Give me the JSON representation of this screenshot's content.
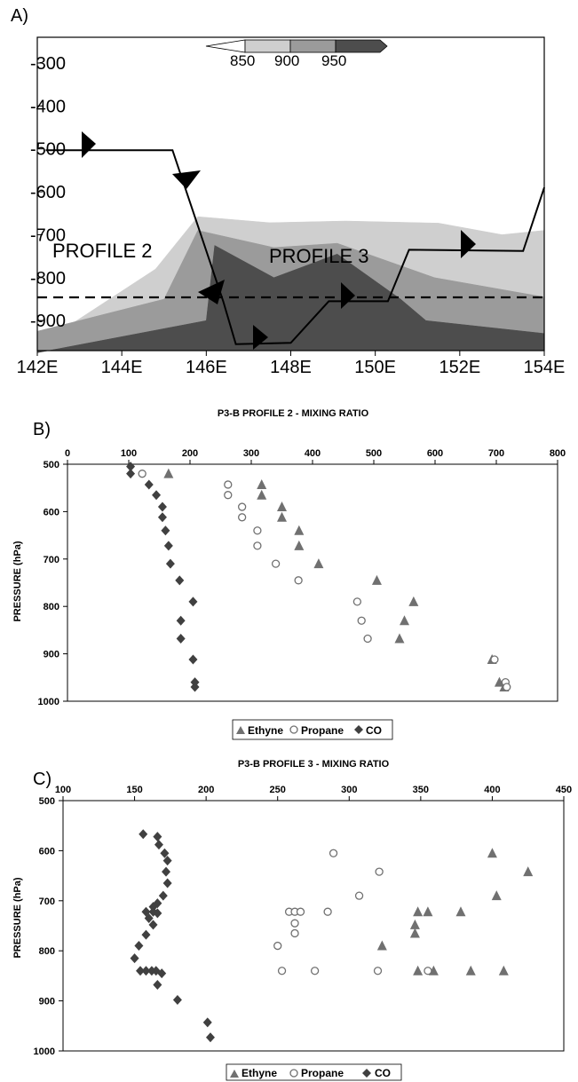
{
  "colors": {
    "level_850": "#cfcfcf",
    "level_900": "#9b9b9b",
    "level_950": "#4d4d4d",
    "marker": "#707070"
  },
  "chart_data": [
    {
      "panel": "A)",
      "type": "area",
      "x_ticks": [
        "142E",
        "144E",
        "146E",
        "148E",
        "150E",
        "152E",
        "154E"
      ],
      "y_ticks": [
        "300",
        "400",
        "500",
        "600",
        "700",
        "800",
        "900"
      ],
      "xlim": [
        142,
        154
      ],
      "ylim": [
        970,
        240
      ],
      "colorbar_labels": [
        "850",
        "900",
        "950"
      ],
      "profile_labels": [
        "PROFILE 2",
        "PROFILE 3"
      ],
      "reference_line_level": 855,
      "flight_track": [
        [
          142.2,
          503
        ],
        [
          145.2,
          503
        ],
        [
          146.4,
          855
        ],
        [
          146.7,
          955
        ],
        [
          148.0,
          952
        ],
        [
          148.9,
          855
        ],
        [
          150.3,
          855
        ],
        [
          150.8,
          735
        ],
        [
          153.5,
          738
        ],
        [
          154.0,
          590
        ]
      ],
      "contours": {
        "850": [
          [
            142,
            960
          ],
          [
            144.8,
            780
          ],
          [
            145.8,
            658
          ],
          [
            147.5,
            672
          ],
          [
            149.3,
            668
          ],
          [
            151.5,
            673
          ],
          [
            153.0,
            700
          ],
          [
            154,
            690
          ],
          [
            154,
            970
          ],
          [
            142,
            970
          ]
        ],
        "900": [
          [
            142,
            925
          ],
          [
            145.0,
            850
          ],
          [
            145.8,
            690
          ],
          [
            147.6,
            730
          ],
          [
            149.1,
            720
          ],
          [
            151.4,
            800
          ],
          [
            154,
            845
          ],
          [
            154,
            970
          ],
          [
            142,
            970
          ]
        ],
        "950": [
          [
            142,
            975
          ],
          [
            146.0,
            900
          ],
          [
            146.2,
            725
          ],
          [
            147.6,
            800
          ],
          [
            149.1,
            745
          ],
          [
            150.6,
            850
          ],
          [
            151.2,
            900
          ],
          [
            154,
            930
          ],
          [
            154,
            970
          ],
          [
            142,
            970
          ]
        ]
      }
    },
    {
      "panel": "B)",
      "type": "scatter",
      "title": "P3-B PROFILE 2 - MIXING RATIO",
      "ylabel": "PRESSURE (hPa)",
      "xlim": [
        0,
        800
      ],
      "ylim": [
        500,
        1000
      ],
      "x_ticks": [
        "0",
        "100",
        "200",
        "300",
        "400",
        "500",
        "600",
        "700",
        "800"
      ],
      "y_ticks": [
        "500",
        "600",
        "700",
        "800",
        "900",
        "1000"
      ],
      "legend": [
        "Ethyne",
        "Propane",
        "CO"
      ],
      "series": [
        {
          "name": "Ethyne",
          "marker": "triangle",
          "points": [
            [
              165,
              520
            ],
            [
              317,
              543
            ],
            [
              317,
              565
            ],
            [
              350,
              590
            ],
            [
              350,
              612
            ],
            [
              378,
              640
            ],
            [
              378,
              672
            ],
            [
              410,
              710
            ],
            [
              505,
              745
            ],
            [
              565,
              790
            ],
            [
              550,
              830
            ],
            [
              542,
              868
            ],
            [
              693,
              912
            ],
            [
              705,
              960
            ],
            [
              713,
              970
            ]
          ]
        },
        {
          "name": "Propane",
          "marker": "circle",
          "points": [
            [
              122,
              520
            ],
            [
              262,
              543
            ],
            [
              262,
              565
            ],
            [
              285,
              590
            ],
            [
              285,
              612
            ],
            [
              310,
              640
            ],
            [
              310,
              672
            ],
            [
              340,
              710
            ],
            [
              377,
              745
            ],
            [
              473,
              790
            ],
            [
              480,
              830
            ],
            [
              490,
              868
            ],
            [
              697,
              912
            ],
            [
              715,
              960
            ],
            [
              717,
              970
            ]
          ]
        },
        {
          "name": "CO",
          "marker": "diamond",
          "points": [
            [
              103,
              505
            ],
            [
              103,
              520
            ],
            [
              133,
              543
            ],
            [
              145,
              565
            ],
            [
              155,
              590
            ],
            [
              155,
              612
            ],
            [
              160,
              640
            ],
            [
              165,
              672
            ],
            [
              168,
              710
            ],
            [
              183,
              745
            ],
            [
              205,
              790
            ],
            [
              185,
              830
            ],
            [
              185,
              868
            ],
            [
              205,
              912
            ],
            [
              208,
              960
            ],
            [
              208,
              970
            ]
          ]
        }
      ]
    },
    {
      "panel": "C)",
      "type": "scatter",
      "title": "P3-B PROFILE 3 - MIXING RATIO",
      "ylabel": "PRESSURE (hPa)",
      "xlim": [
        100,
        450
      ],
      "ylim": [
        500,
        1000
      ],
      "x_ticks": [
        "100",
        "150",
        "200",
        "250",
        "300",
        "350",
        "400",
        "450"
      ],
      "y_ticks": [
        "500",
        "600",
        "700",
        "800",
        "900",
        "1000"
      ],
      "legend": [
        "Ethyne",
        "Propane",
        "CO"
      ],
      "series": [
        {
          "name": "Ethyne",
          "marker": "triangle",
          "points": [
            [
              400,
              605
            ],
            [
              425,
              642
            ],
            [
              403,
              690
            ],
            [
              348,
              722
            ],
            [
              355,
              722
            ],
            [
              378,
              722
            ],
            [
              346,
              748
            ],
            [
              346,
              765
            ],
            [
              323,
              790
            ],
            [
              348,
              840
            ],
            [
              359,
              840
            ],
            [
              385,
              840
            ],
            [
              408,
              840
            ]
          ]
        },
        {
          "name": "Propane",
          "marker": "circle",
          "points": [
            [
              289,
              605
            ],
            [
              321,
              642
            ],
            [
              307,
              690
            ],
            [
              258,
              722
            ],
            [
              262,
              722
            ],
            [
              266,
              722
            ],
            [
              285,
              722
            ],
            [
              262,
              745
            ],
            [
              262,
              765
            ],
            [
              250,
              790
            ],
            [
              253,
              840
            ],
            [
              276,
              840
            ],
            [
              320,
              840
            ],
            [
              355,
              840
            ]
          ]
        },
        {
          "name": "CO",
          "marker": "diamond",
          "points": [
            [
              156,
              567
            ],
            [
              166,
              572
            ],
            [
              167,
              588
            ],
            [
              171,
              605
            ],
            [
              173,
              620
            ],
            [
              172,
              642
            ],
            [
              173,
              665
            ],
            [
              170,
              690
            ],
            [
              166,
              705
            ],
            [
              163,
              712
            ],
            [
              158,
              722
            ],
            [
              163,
              722
            ],
            [
              166,
              725
            ],
            [
              160,
              735
            ],
            [
              163,
              748
            ],
            [
              158,
              768
            ],
            [
              153,
              790
            ],
            [
              150,
              815
            ],
            [
              154,
              840
            ],
            [
              158,
              840
            ],
            [
              162,
              840
            ],
            [
              165,
              840
            ],
            [
              169,
              845
            ],
            [
              166,
              868
            ],
            [
              180,
              898
            ],
            [
              201,
              943
            ],
            [
              203,
              973
            ]
          ]
        }
      ]
    }
  ]
}
